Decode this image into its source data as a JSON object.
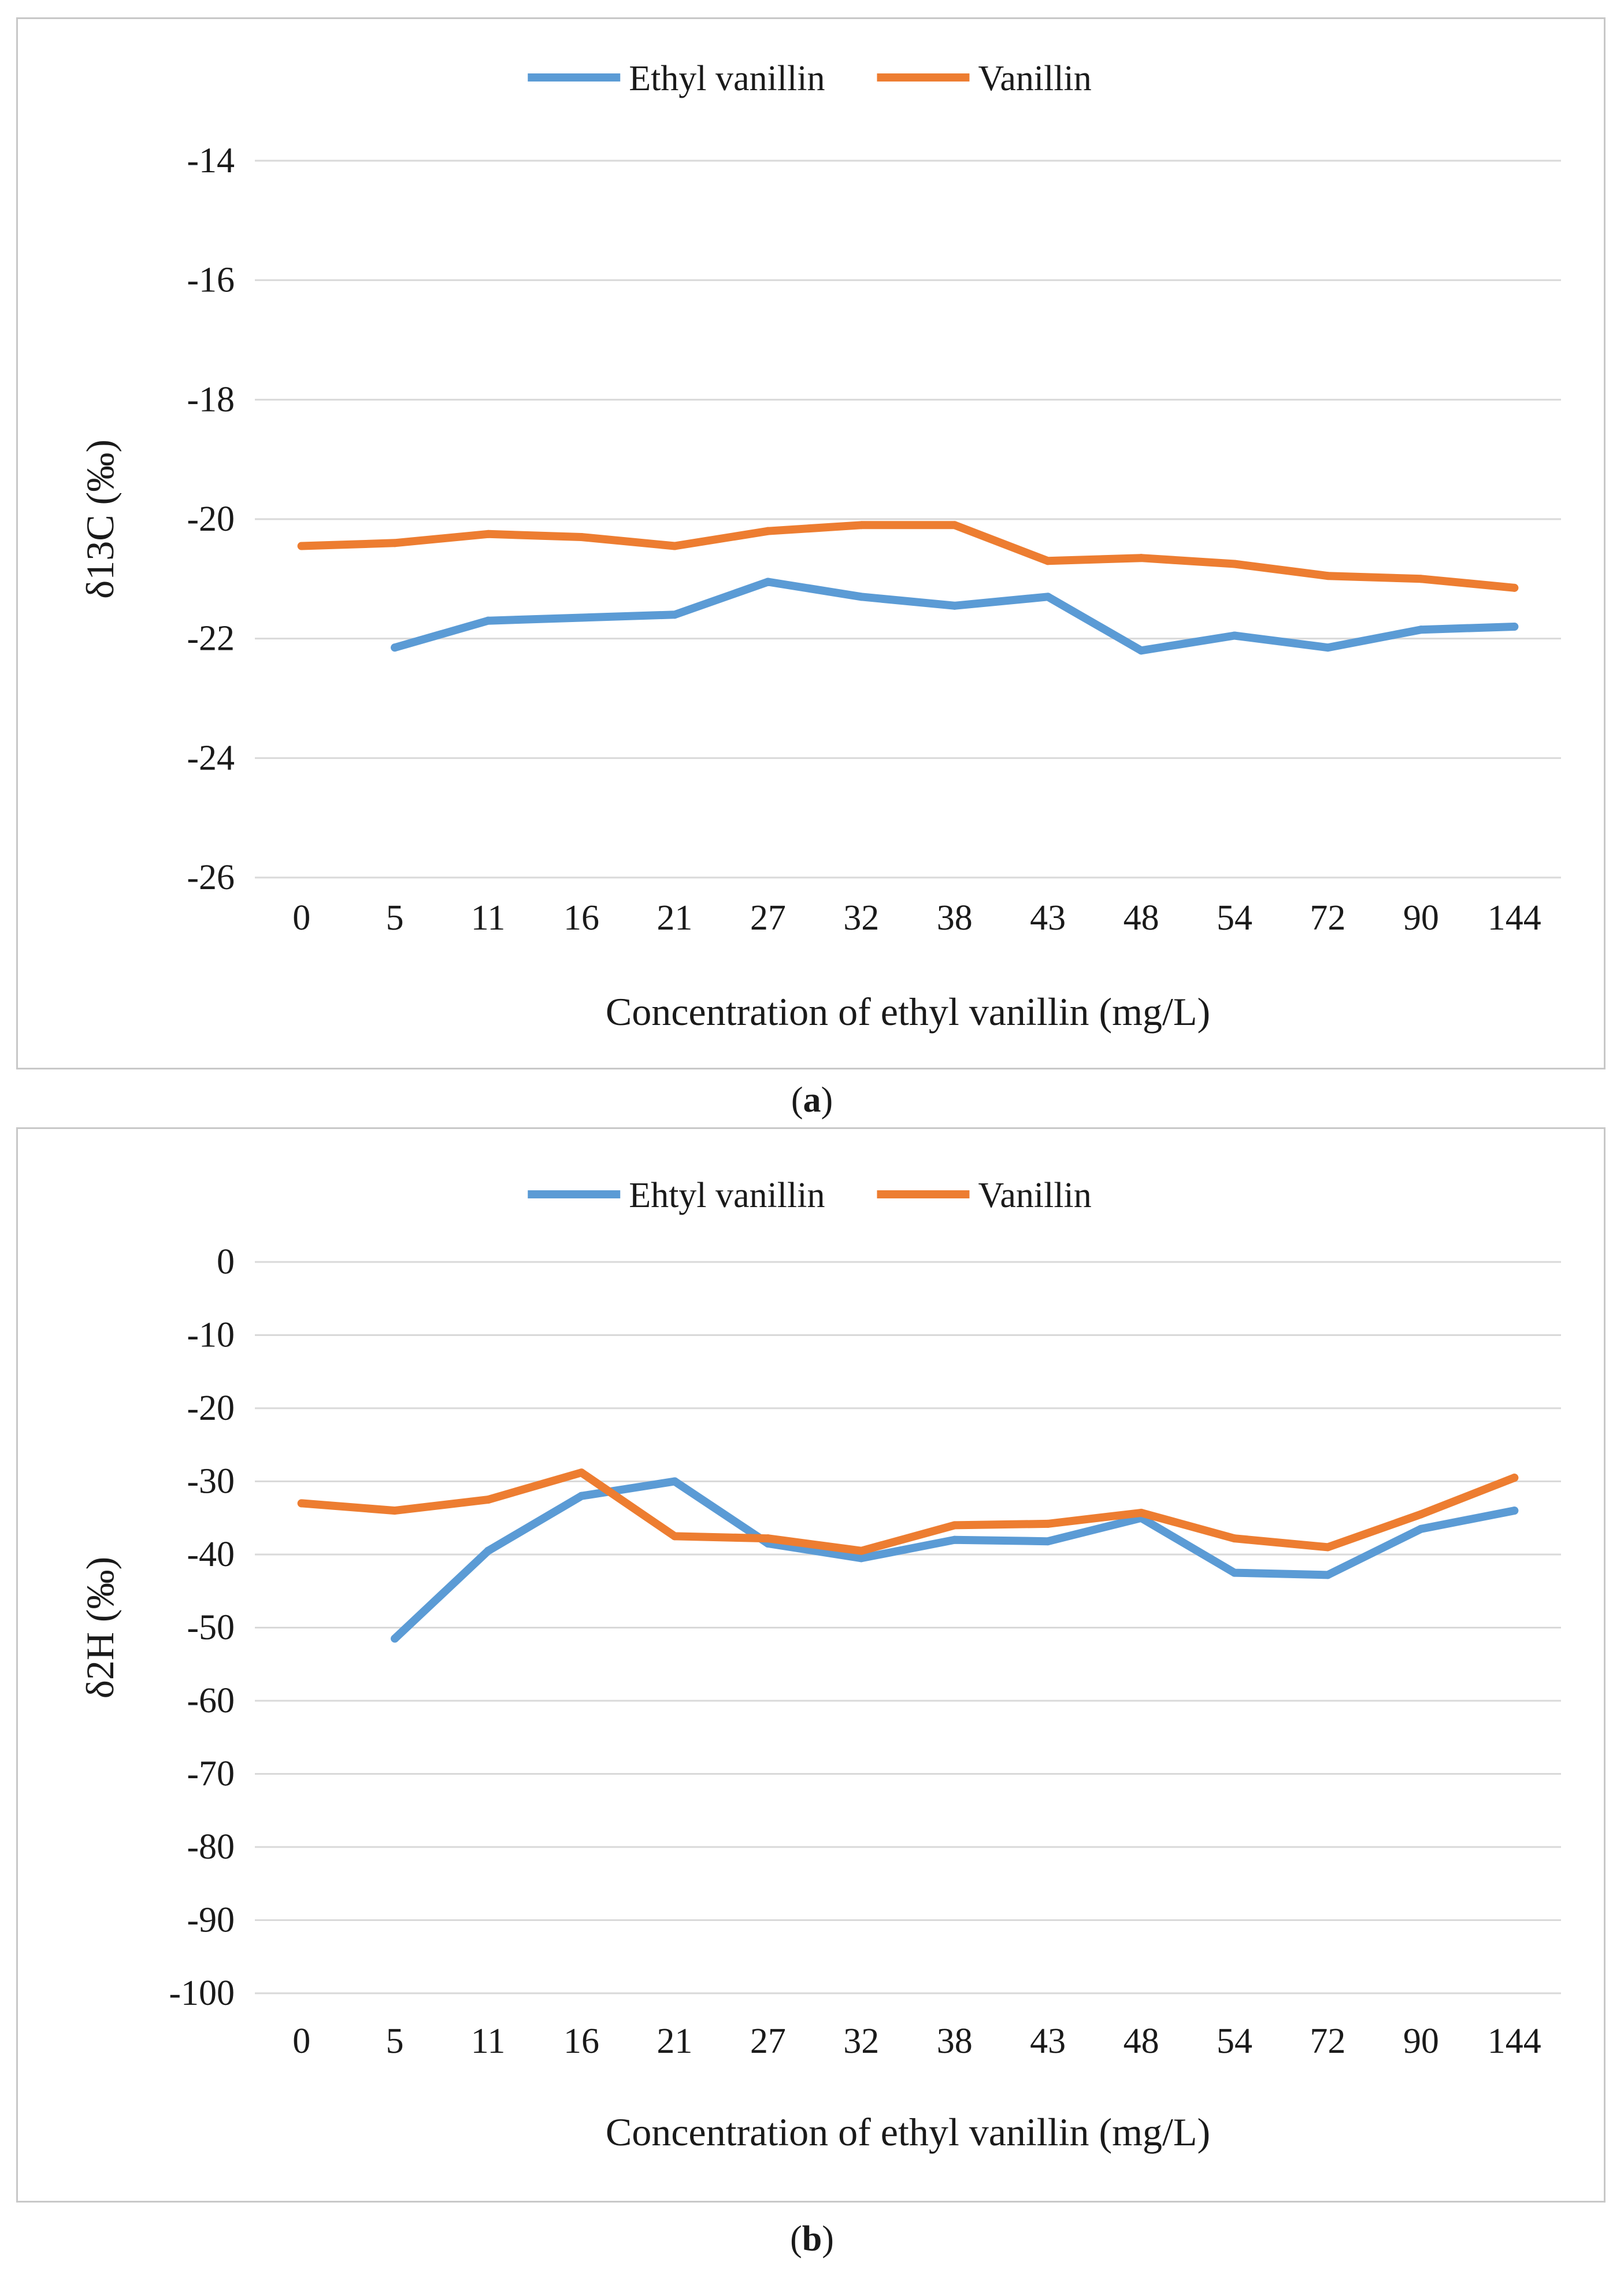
{
  "chart_data": [
    {
      "type": "line",
      "panel_label": "a",
      "title": "",
      "xlabel": "Concentration of ethyl vanillin (mg/L)",
      "ylabel": "δ13C (‰)",
      "categories": [
        "0",
        "5",
        "11",
        "16",
        "21",
        "27",
        "32",
        "38",
        "43",
        "48",
        "54",
        "72",
        "90",
        "144"
      ],
      "ylim": [
        -26,
        -14
      ],
      "yticks": [
        -14,
        -16,
        -18,
        -20,
        -22,
        -24,
        -26
      ],
      "grid": true,
      "legend": "top-center",
      "series": [
        {
          "name": "Ethyl vanillin",
          "color": "#5b9bd5",
          "values": [
            null,
            -22.15,
            -21.7,
            -21.65,
            -21.6,
            -21.05,
            -21.3,
            -21.45,
            -21.3,
            -22.2,
            -21.95,
            -22.15,
            -21.85,
            -21.8
          ]
        },
        {
          "name": "Vanillin",
          "color": "#ed7d31",
          "values": [
            -20.45,
            -20.4,
            -20.25,
            -20.3,
            -20.45,
            -20.2,
            -20.1,
            -20.1,
            -20.7,
            -20.65,
            -20.75,
            -20.95,
            -21.0,
            -21.15
          ]
        }
      ]
    },
    {
      "type": "line",
      "panel_label": "b",
      "title": "",
      "xlabel": "Concentration of ethyl vanillin (mg/L)",
      "ylabel": "δ2H (‰)",
      "categories": [
        "0",
        "5",
        "11",
        "16",
        "21",
        "27",
        "32",
        "38",
        "43",
        "48",
        "54",
        "72",
        "90",
        "144"
      ],
      "ylim": [
        -100,
        0
      ],
      "yticks": [
        0,
        -10,
        -20,
        -30,
        -40,
        -50,
        -60,
        -70,
        -80,
        -90,
        -100
      ],
      "grid": true,
      "legend": "top-center",
      "series": [
        {
          "name": "Ehtyl vanillin",
          "color": "#5b9bd5",
          "values": [
            null,
            -51.5,
            -39.5,
            -32.0,
            -30.0,
            -38.5,
            -40.5,
            -38.0,
            -38.2,
            -35.0,
            -42.5,
            -42.8,
            -36.5,
            -34.0
          ]
        },
        {
          "name": "Vanillin",
          "color": "#ed7d31",
          "values": [
            -33.0,
            -34.0,
            -32.5,
            -28.8,
            -37.5,
            -37.8,
            -39.5,
            -36.0,
            -35.8,
            -34.3,
            -37.8,
            -39.0,
            -34.5,
            -29.5
          ]
        }
      ]
    }
  ]
}
